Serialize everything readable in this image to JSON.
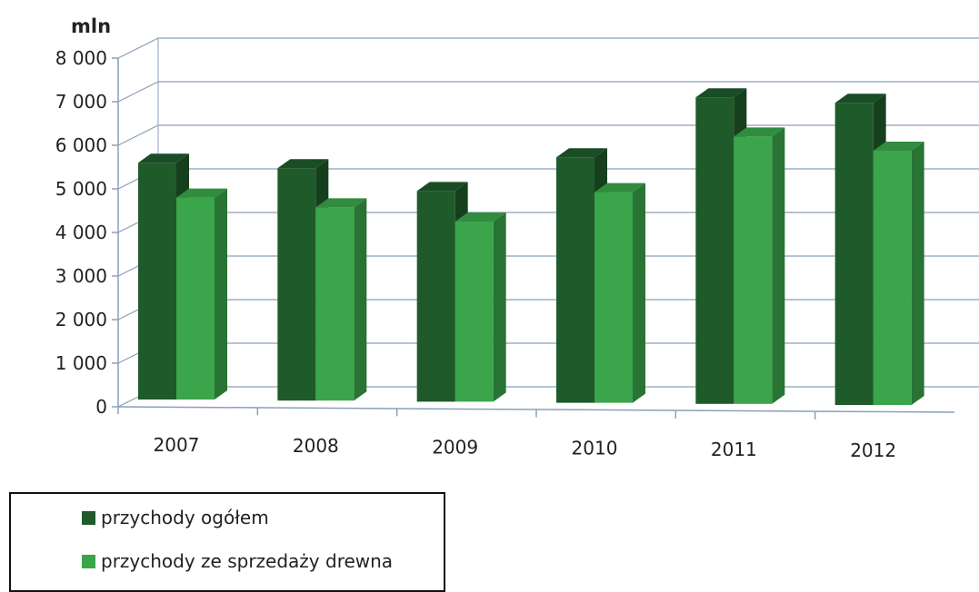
{
  "chart_data": {
    "type": "bar",
    "unit_label": "mln",
    "categories": [
      "2007",
      "2008",
      "2009",
      "2010",
      "2011",
      "2012"
    ],
    "series": [
      {
        "name": "przychody ogółem",
        "values": [
          5600,
          5500,
          5000,
          5800,
          7200,
          7100
        ],
        "color": "#1f5a2b"
      },
      {
        "name": "przychody ze sprzedaży drewna",
        "values": [
          4800,
          4600,
          4300,
          5000,
          6300,
          6000
        ],
        "color": "#3aa54b"
      }
    ],
    "ylim": [
      0,
      8000
    ],
    "yticks": [
      "0",
      "1 000",
      "2 000",
      "3 000",
      "4 000",
      "5 000",
      "6 000",
      "7 000",
      "8 000"
    ],
    "grid": true,
    "legend_position": "bottom-left"
  }
}
